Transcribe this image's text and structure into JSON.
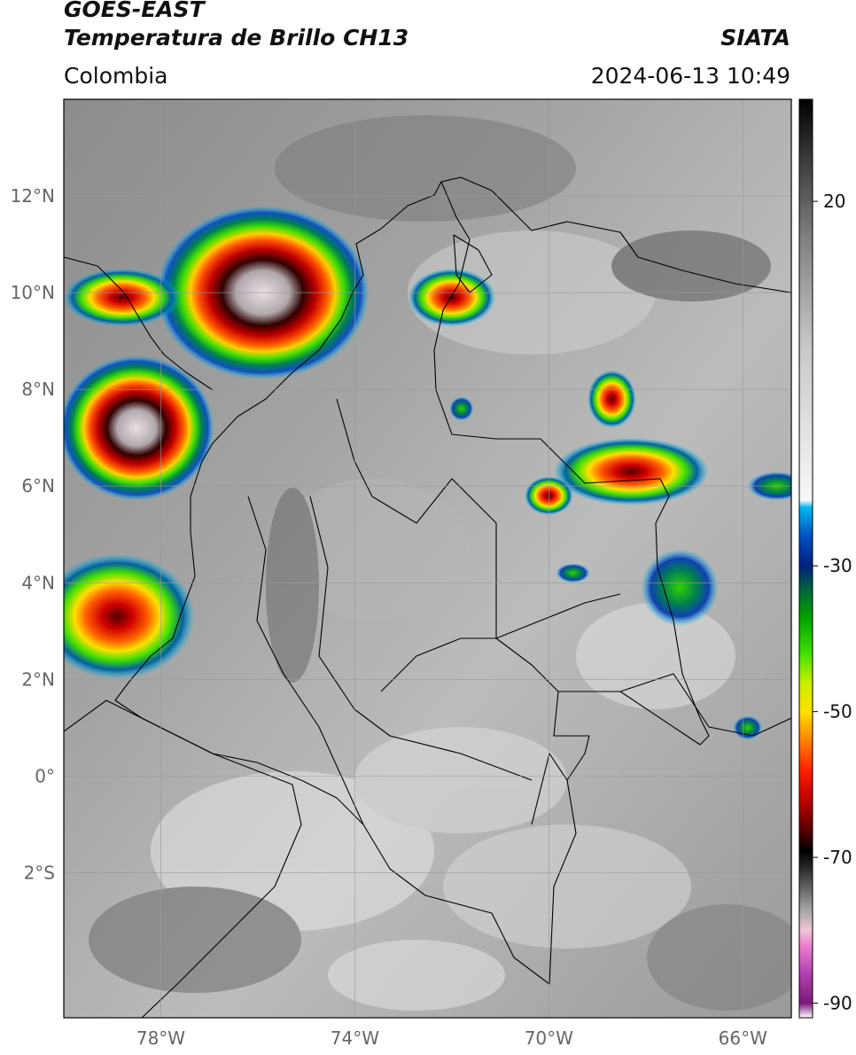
{
  "header": {
    "satellite": "GOES-EAST",
    "product": "Temperatura de Brillo CH13",
    "region": "Colombia",
    "organization": "SIATA",
    "timestamp": "2024-06-13 10:49"
  },
  "map": {
    "lon_range": [
      -80,
      -65
    ],
    "lat_range": [
      -5,
      14
    ],
    "lat_ticks": [
      {
        "lat": 12,
        "label": "12°N"
      },
      {
        "lat": 10,
        "label": "10°N"
      },
      {
        "lat": 8,
        "label": "8°N"
      },
      {
        "lat": 6,
        "label": "6°N"
      },
      {
        "lat": 4,
        "label": "4°N"
      },
      {
        "lat": 2,
        "label": "2°N"
      },
      {
        "lat": 0,
        "label": "0°"
      },
      {
        "lat": -2,
        "label": "2°S"
      }
    ],
    "lon_ticks": [
      {
        "lon": -78,
        "label": "78°W"
      },
      {
        "lon": -74,
        "label": "74°W"
      },
      {
        "lon": -70,
        "label": "70°W"
      },
      {
        "lon": -66,
        "label": "66°W"
      }
    ],
    "convective_cells": [
      {
        "lon": -75.9,
        "lat": 10.0,
        "rx": 2.2,
        "ry": 1.8,
        "intensity": 1.0
      },
      {
        "lon": -78.5,
        "lat": 7.2,
        "rx": 1.6,
        "ry": 1.5,
        "intensity": 1.0
      },
      {
        "lon": -78.8,
        "lat": 9.9,
        "rx": 1.2,
        "ry": 0.6,
        "intensity": 0.8
      },
      {
        "lon": -72.0,
        "lat": 9.9,
        "rx": 0.9,
        "ry": 0.6,
        "intensity": 0.75
      },
      {
        "lon": -68.3,
        "lat": 6.3,
        "rx": 1.6,
        "ry": 0.7,
        "intensity": 0.75
      },
      {
        "lon": -68.7,
        "lat": 7.8,
        "rx": 0.5,
        "ry": 0.6,
        "intensity": 0.6
      },
      {
        "lon": -70.0,
        "lat": 5.8,
        "rx": 0.5,
        "ry": 0.4,
        "intensity": 0.6
      },
      {
        "lon": -78.9,
        "lat": 3.3,
        "rx": 1.6,
        "ry": 1.3,
        "intensity": 0.55
      },
      {
        "lon": -67.3,
        "lat": 3.9,
        "rx": 0.8,
        "ry": 0.8,
        "intensity": 0.4
      },
      {
        "lon": -71.8,
        "lat": 7.6,
        "rx": 0.25,
        "ry": 0.25,
        "intensity": 0.3
      },
      {
        "lon": -65.3,
        "lat": 6.0,
        "rx": 0.6,
        "ry": 0.3,
        "intensity": 0.3
      },
      {
        "lon": -65.9,
        "lat": 1.0,
        "rx": 0.3,
        "ry": 0.25,
        "intensity": 0.3
      },
      {
        "lon": -69.5,
        "lat": 4.2,
        "rx": 0.35,
        "ry": 0.2,
        "intensity": 0.35
      }
    ]
  },
  "colorbar": {
    "range": [
      -92,
      34
    ],
    "ticks": [
      {
        "value": 20,
        "label": "20"
      },
      {
        "value": -30,
        "label": "-30"
      },
      {
        "value": -50,
        "label": "-50"
      },
      {
        "value": -70,
        "label": "-70"
      },
      {
        "value": -90,
        "label": "-90"
      }
    ],
    "stops": [
      {
        "value": -92,
        "color": "#ffffff"
      },
      {
        "value": -90,
        "color": "#7a1a7a"
      },
      {
        "value": -86,
        "color": "#b040b0"
      },
      {
        "value": -82,
        "color": "#f080d0"
      },
      {
        "value": -80,
        "color": "#f0c8d8"
      },
      {
        "value": -77,
        "color": "#a0a0a0"
      },
      {
        "value": -74,
        "color": "#606060"
      },
      {
        "value": -71,
        "color": "#202020"
      },
      {
        "value": -69,
        "color": "#000000"
      },
      {
        "value": -66,
        "color": "#600000"
      },
      {
        "value": -62,
        "color": "#c00000"
      },
      {
        "value": -58,
        "color": "#ff2000"
      },
      {
        "value": -54,
        "color": "#ff8000"
      },
      {
        "value": -50,
        "color": "#ffe000"
      },
      {
        "value": -46,
        "color": "#c8f000"
      },
      {
        "value": -42,
        "color": "#40e000"
      },
      {
        "value": -37,
        "color": "#00a000"
      },
      {
        "value": -33,
        "color": "#006040"
      },
      {
        "value": -30,
        "color": "#002080"
      },
      {
        "value": -26,
        "color": "#0050c0"
      },
      {
        "value": -22,
        "color": "#00b8f0"
      },
      {
        "value": -21,
        "color": "#f8f8f8"
      },
      {
        "value": 0,
        "color": "#c8c8c8"
      },
      {
        "value": 15,
        "color": "#808080"
      },
      {
        "value": 25,
        "color": "#404040"
      },
      {
        "value": 34,
        "color": "#000000"
      }
    ]
  }
}
